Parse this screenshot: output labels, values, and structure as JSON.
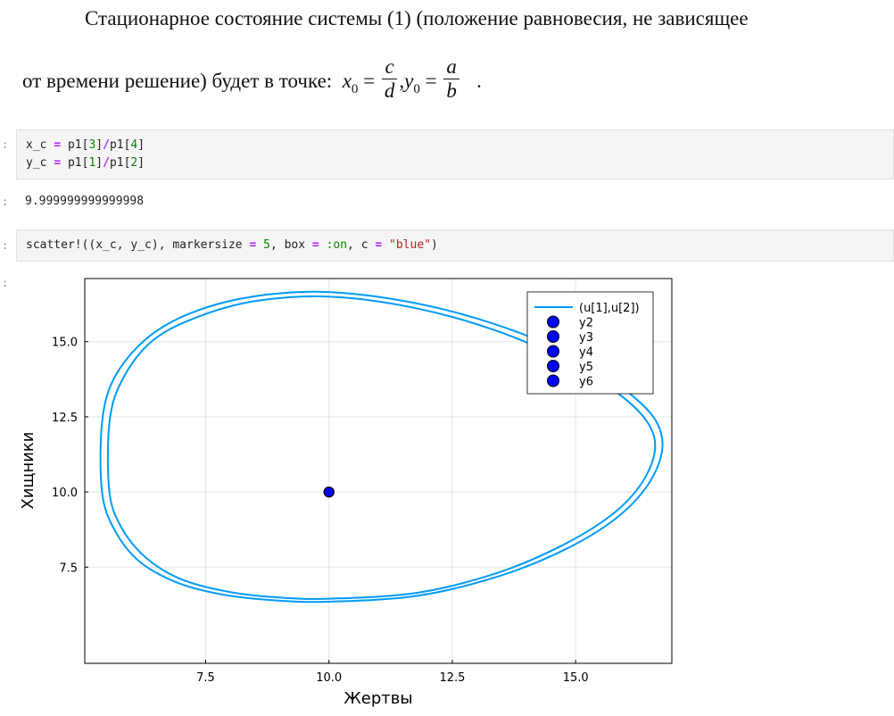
{
  "text": {
    "line1": "Стационарное состояние системы (1) (положение равновесия, не зависящее",
    "line2_prefix": "от времени решение) будет в точке:",
    "x0": "x",
    "y0": "y",
    "sub0": "0",
    "eq": "=",
    "comma": ",",
    "frac1_num": "c",
    "frac1_den": "d",
    "frac2_num": "a",
    "frac2_den": "b",
    "period": "."
  },
  "notebook": {
    "prompt": ":",
    "cell1": {
      "line1": [
        "x_c ",
        "=",
        " p1[",
        "3",
        "]",
        "/",
        "p1[",
        "4",
        "]"
      ],
      "line2": [
        "y_c ",
        "=",
        " p1[",
        "1",
        "]",
        "/",
        "p1[",
        "2",
        "]"
      ]
    },
    "output1": "9.999999999999998",
    "cell2": [
      "scatter!((x_c, y_c), markersize ",
      "=",
      " ",
      "5",
      ", box ",
      "=",
      " ",
      ":on",
      ", c ",
      "=",
      " ",
      "\"blue\"",
      ")"
    ]
  },
  "chart_data": {
    "type": "line",
    "xlabel": "Жертвы",
    "ylabel": "Хищники",
    "xlim": [
      5.05,
      16.95
    ],
    "ylim": [
      4.3,
      17.1
    ],
    "xticks": [
      7.5,
      10.0,
      12.5,
      15.0
    ],
    "yticks": [
      7.5,
      10.0,
      12.5,
      15.0
    ],
    "grid": true,
    "box": true,
    "legend_position": "top-right",
    "series": [
      {
        "name": "(u[1],u[2])",
        "type": "line",
        "color": "#009af9",
        "loops": [
          {
            "x": [
              10.0,
              11.8,
              13.4,
              14.7,
              15.7,
              16.3,
              16.6,
              16.5,
              16.0,
              15.0,
              13.5,
              11.8,
              10.0,
              8.5,
              7.3,
              6.4,
              5.8,
              5.55,
              5.55,
              5.8,
              6.3,
              7.0,
              7.9,
              8.9,
              10.0
            ],
            "y": [
              6.45,
              6.65,
              7.3,
              8.2,
              9.2,
              10.2,
              11.3,
              12.2,
              13.1,
              14.2,
              15.3,
              16.1,
              16.5,
              16.35,
              15.8,
              15.0,
              13.7,
              12.3,
              10.0,
              8.8,
              7.8,
              7.1,
              6.7,
              6.5,
              6.45
            ]
          },
          {
            "x": [
              10.0,
              11.8,
              13.45,
              14.8,
              15.8,
              16.45,
              16.75,
              16.65,
              16.15,
              15.15,
              13.6,
              11.85,
              10.0,
              8.45,
              7.2,
              6.3,
              5.65,
              5.4,
              5.4,
              5.65,
              6.15,
              6.9,
              7.8,
              8.85,
              10.0
            ],
            "y": [
              6.35,
              6.55,
              7.2,
              8.1,
              9.1,
              10.2,
              11.35,
              12.3,
              13.2,
              14.35,
              15.45,
              16.25,
              16.65,
              16.5,
              15.95,
              15.1,
              13.8,
              12.3,
              10.0,
              8.75,
              7.7,
              7.0,
              6.6,
              6.4,
              6.35
            ]
          }
        ]
      },
      {
        "name": "y2",
        "type": "scatter",
        "color": "#0000ff",
        "x": [
          10.0
        ],
        "y": [
          10.0
        ]
      },
      {
        "name": "y3",
        "type": "scatter",
        "color": "#0000ff",
        "x": [
          10.0
        ],
        "y": [
          10.0
        ]
      },
      {
        "name": "y4",
        "type": "scatter",
        "color": "#0000ff",
        "x": [
          10.0
        ],
        "y": [
          10.0
        ]
      },
      {
        "name": "y5",
        "type": "scatter",
        "color": "#0000ff",
        "x": [
          10.0
        ],
        "y": [
          10.0
        ]
      },
      {
        "name": "y6",
        "type": "scatter",
        "color": "#0000ff",
        "x": [
          10.0
        ],
        "y": [
          10.0
        ]
      }
    ]
  }
}
